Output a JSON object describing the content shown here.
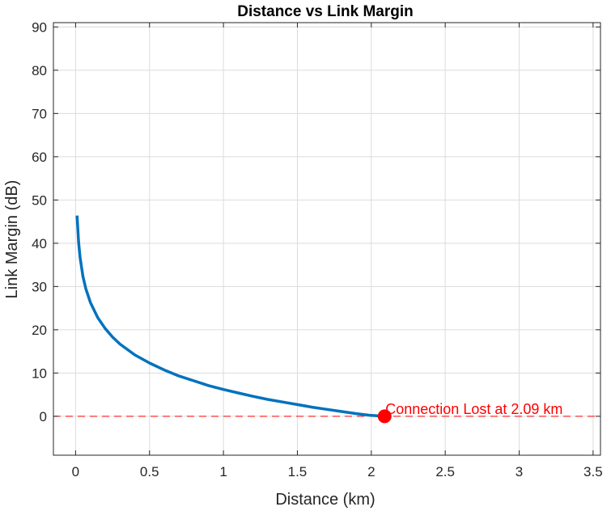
{
  "chart_data": {
    "type": "line",
    "title": "Distance vs Link Margin",
    "xlabel": "Distance (km)",
    "ylabel": "Link Margin (dB)",
    "xlim": [
      -0.15,
      3.55
    ],
    "ylim": [
      -9,
      91
    ],
    "xticks": [
      0,
      0.5,
      1,
      1.5,
      2,
      2.5,
      3,
      3.5
    ],
    "xtick_labels": [
      "0",
      "0.5",
      "1",
      "1.5",
      "2",
      "2.5",
      "3",
      "3.5"
    ],
    "yticks": [
      0,
      10,
      20,
      30,
      40,
      50,
      60,
      70,
      80,
      90
    ],
    "ytick_labels": [
      "0",
      "10",
      "20",
      "30",
      "40",
      "50",
      "60",
      "70",
      "80",
      "90"
    ],
    "grid": true,
    "series": [
      {
        "color": "#0072BD",
        "x": [
          0.01,
          0.02,
          0.03,
          0.05,
          0.07,
          0.1,
          0.15,
          0.2,
          0.25,
          0.3,
          0.4,
          0.5,
          0.6,
          0.7,
          0.8,
          0.9,
          1.0,
          1.1,
          1.2,
          1.3,
          1.4,
          1.5,
          1.6,
          1.7,
          1.8,
          1.9,
          2.0,
          2.09
        ],
        "y": [
          46.4,
          40.3,
          36.8,
          32.3,
          29.4,
          26.3,
          22.8,
          20.3,
          18.3,
          16.7,
          14.2,
          12.3,
          10.7,
          9.3,
          8.2,
          7.1,
          6.2,
          5.4,
          4.6,
          3.9,
          3.3,
          2.7,
          2.1,
          1.6,
          1.1,
          0.6,
          0.2,
          0.0
        ]
      }
    ],
    "threshold": {
      "y": 0,
      "color": "#FF0000"
    },
    "marker": {
      "x": 2.09,
      "y": 0,
      "color": "#FF0000"
    },
    "annotation": {
      "text": "Connection Lost at 2.09 km",
      "x": 2.09,
      "y": 0,
      "color": "#FF0000"
    }
  }
}
